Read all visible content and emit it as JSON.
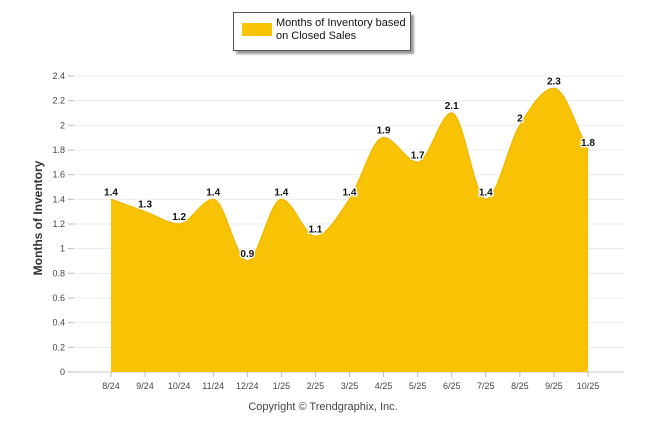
{
  "chart_data": {
    "type": "area",
    "series": [
      {
        "name": "Months of Inventory based on Closed Sales",
        "color": "#f8c304",
        "values": [
          1.4,
          1.3,
          1.2,
          1.4,
          0.9,
          1.4,
          1.1,
          1.4,
          1.9,
          1.7,
          2.1,
          1.4,
          2.0,
          2.3,
          1.8
        ],
        "labels": [
          "1.4",
          "1.3",
          "1.2",
          "1.4",
          "0.9",
          "1.4",
          "1.1",
          "1.4",
          "1.9",
          "1.7",
          "2.1",
          "1.4",
          "2",
          "2.3",
          "1.8"
        ]
      }
    ],
    "categories": [
      "8/24",
      "9/24",
      "10/24",
      "11/24",
      "12/24",
      "1/25",
      "2/25",
      "3/25",
      "4/25",
      "5/25",
      "6/25",
      "7/25",
      "8/25",
      "9/25",
      "10/25"
    ],
    "title": "",
    "xlabel": "",
    "ylabel": "Months of Inventory",
    "ylim": [
      0,
      2.4
    ],
    "yticks": [
      "0",
      "0.2",
      "0.4",
      "0.6",
      "0.8",
      "1",
      "1.2",
      "1.4",
      "1.6",
      "1.8",
      "2",
      "2.2",
      "2.4"
    ],
    "grid": true,
    "legend_position": "top-center"
  },
  "legend": {
    "label": "Months of Inventory based on Closed Sales",
    "color": "#f8c304"
  },
  "footer": {
    "copyright": "Copyright © Trendgraphix, Inc."
  }
}
